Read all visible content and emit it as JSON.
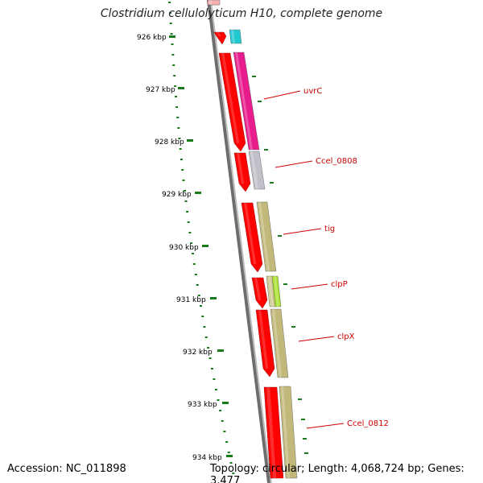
{
  "title": "Clostridium cellulolyticum H10, complete genome",
  "footer": {
    "accession": "Accession: NC_011898",
    "summary": "Topology: circular; Length: 4,068,724 bp; Genes: 3,477"
  },
  "colors": {
    "backbone": "#7a7a7a",
    "cds_strand": "#ff0000",
    "gc_ticks": "#1a7a1a",
    "label_line": "#cc0000"
  },
  "kbp_labels": [
    "926 kbp",
    "927 kbp",
    "928 kbp",
    "929 kbp",
    "930 kbp",
    "931 kbp",
    "932 kbp",
    "933 kbp",
    "934 kbp"
  ],
  "gene_labels": [
    "uvrC",
    "Ccel_0808",
    "tig",
    "clpP",
    "clpX",
    "Ccel_0812"
  ],
  "gene_colors": [
    "#e81c8c",
    "#c0c0c8",
    "#c2b87a",
    "#a8e030",
    "#c2b87a",
    "#c2b87a"
  ]
}
